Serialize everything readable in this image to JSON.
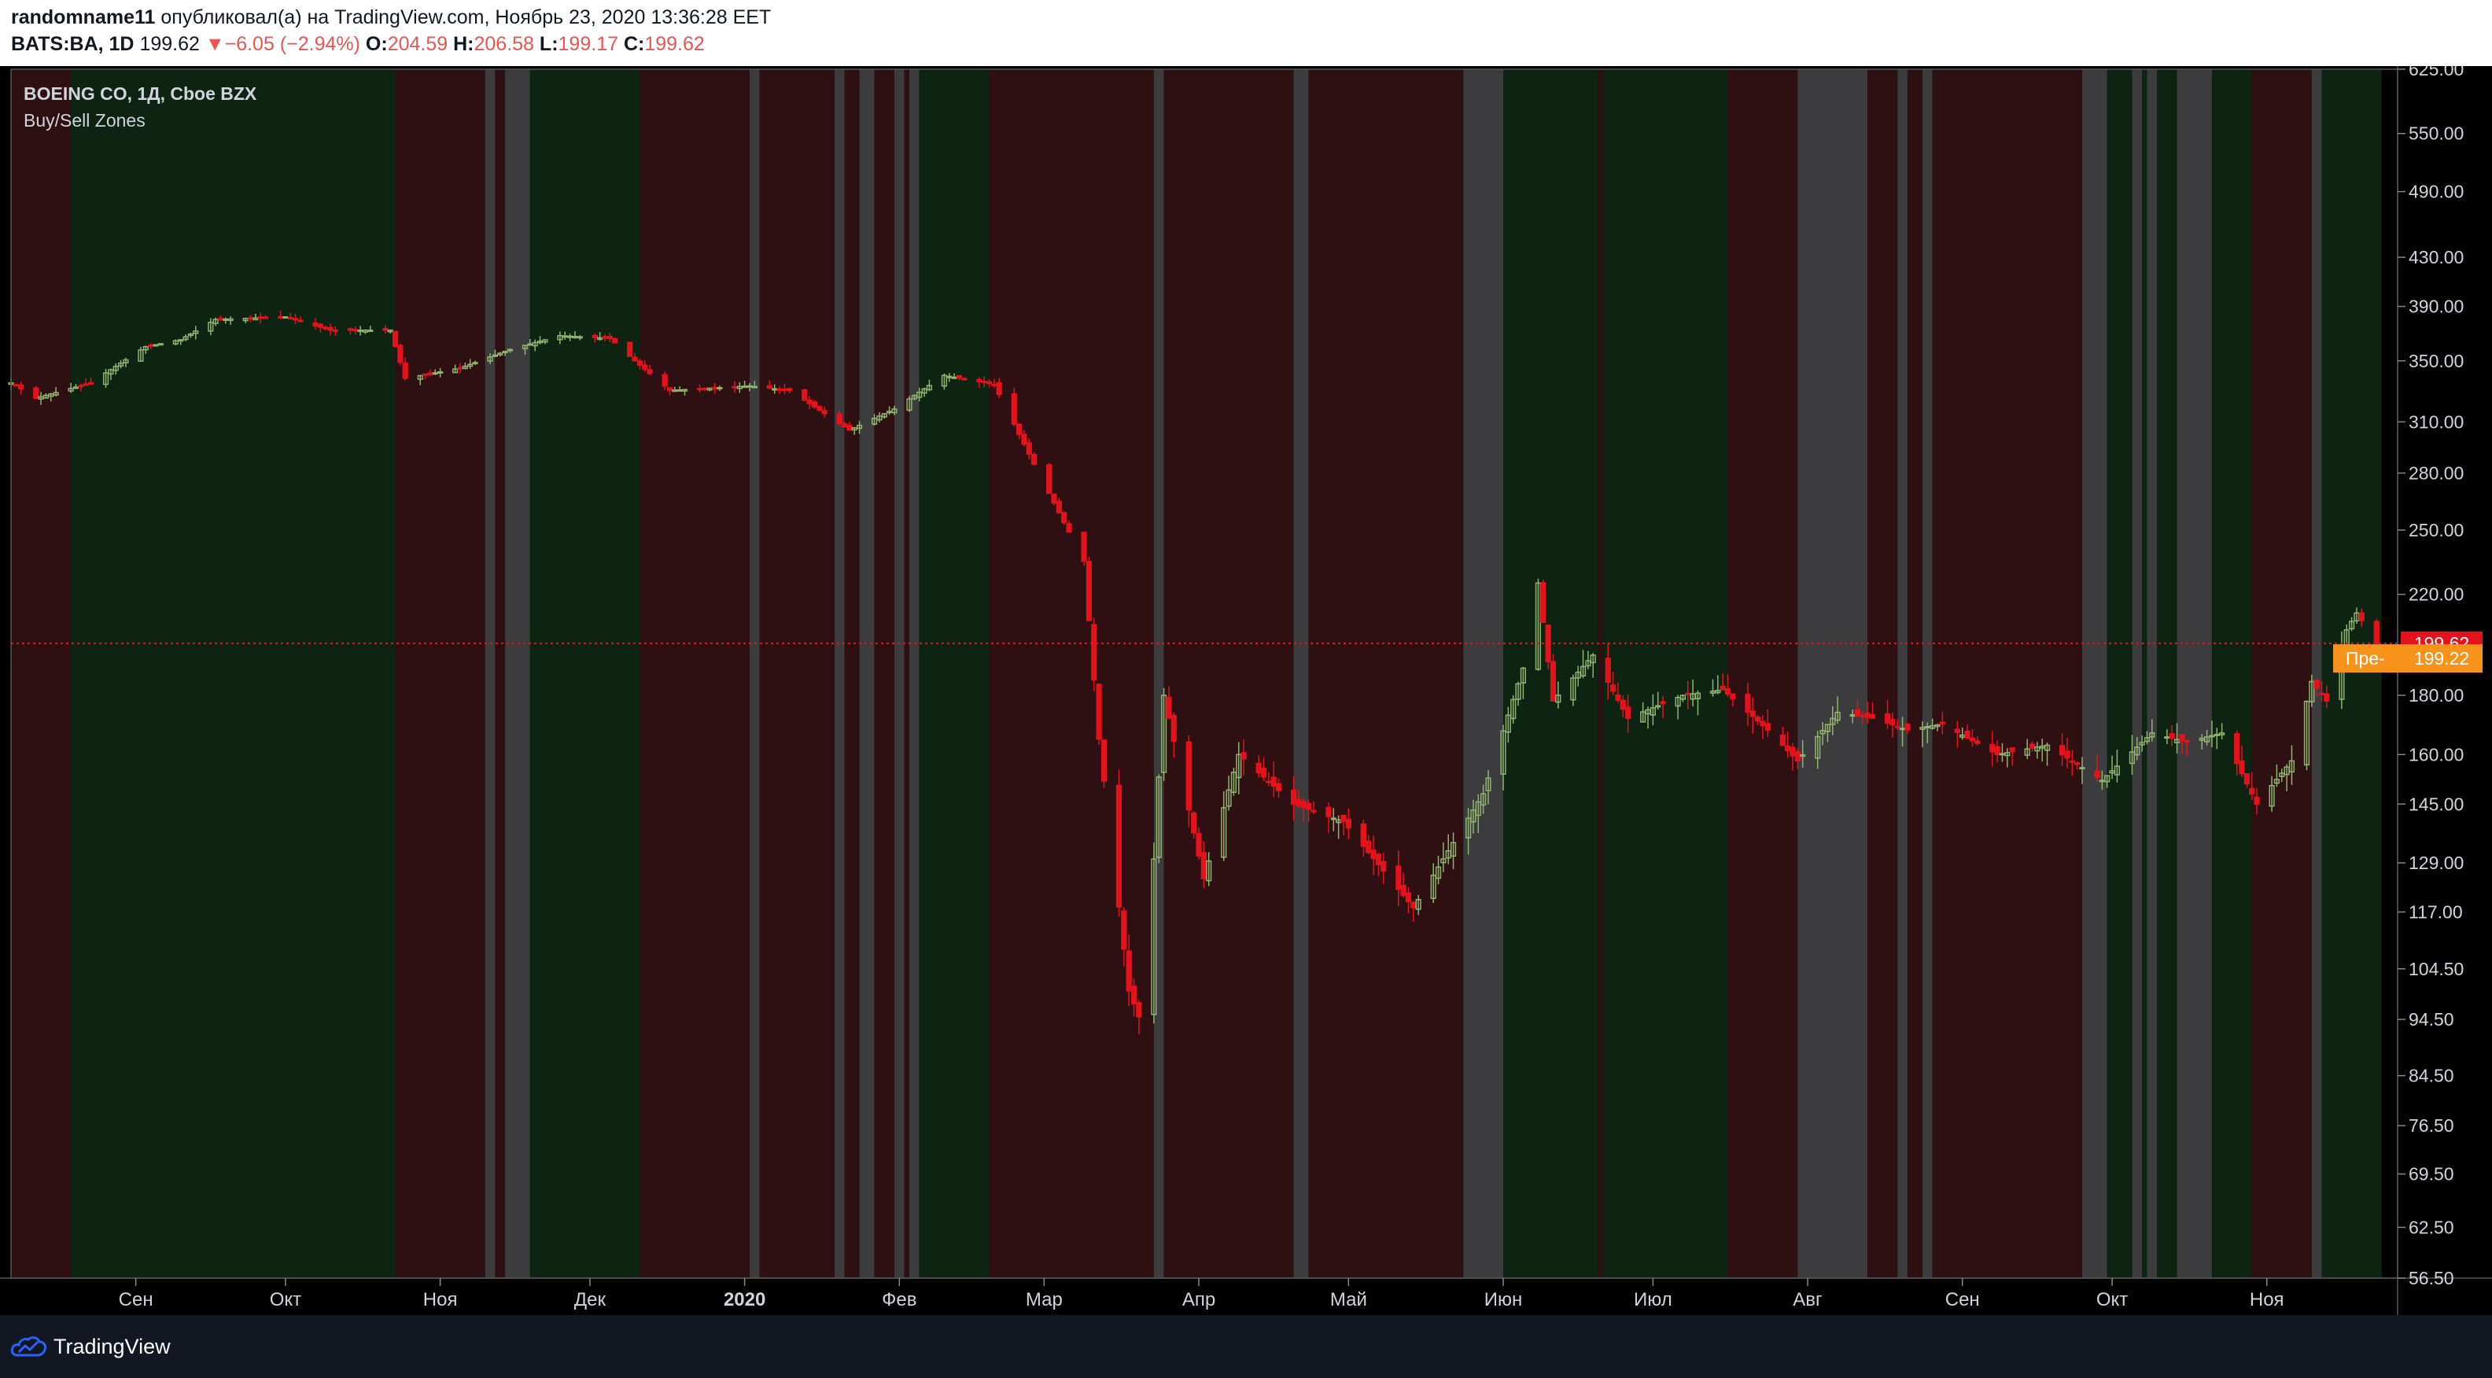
{
  "header": {
    "user": "randomname11",
    "published_text": "опубликовал(а) на TradingView.com, Ноябрь 23, 2020 13:36:28 EET",
    "symbol": "BATS:BA, 1D",
    "last_price": "199.62",
    "change_arrow": "▼",
    "change": "−6.05 (−2.94%)",
    "open_label": "O:",
    "open": "204.59",
    "high_label": "H:",
    "high": "206.58",
    "low_label": "L:",
    "low": "199.17",
    "close_label": "C:",
    "close": "199.62"
  },
  "legend": {
    "title": "BOEING CO, 1Д, Cboe BZX",
    "indicator": "Buy/Sell Zones"
  },
  "footer": {
    "brand": "TradingView"
  },
  "colors": {
    "sell_zone": "#2e1012",
    "buy_zone": "#0e2412",
    "neutral_zone": "#3c3c3e",
    "up_candle": "#8fb46e",
    "down_candle": "#e5121b",
    "price_line": "#e5121b",
    "last_tag": "#e5121b",
    "pre_tag": "#f7931a"
  },
  "chart_data": {
    "type": "candlestick",
    "scale": "log",
    "ylim": [
      56.5,
      625
    ],
    "y_ticks": [
      "625.00",
      "550.00",
      "490.00",
      "430.00",
      "390.00",
      "350.00",
      "310.00",
      "280.00",
      "250.00",
      "220.00",
      "180.00",
      "160.00",
      "145.00",
      "129.00",
      "117.00",
      "104.50",
      "94.50",
      "84.50",
      "76.50",
      "69.50",
      "62.50",
      "56.50"
    ],
    "x_labels": [
      {
        "date": "2019-09-01",
        "label": "Сен"
      },
      {
        "date": "2019-10-01",
        "label": "Окт"
      },
      {
        "date": "2019-11-01",
        "label": "Ноя"
      },
      {
        "date": "2019-12-01",
        "label": "Дек"
      },
      {
        "date": "2020-01-01",
        "label": "2020"
      },
      {
        "date": "2020-02-01",
        "label": "Фев"
      },
      {
        "date": "2020-03-01",
        "label": "Мар"
      },
      {
        "date": "2020-04-01",
        "label": "Апр"
      },
      {
        "date": "2020-05-01",
        "label": "Май"
      },
      {
        "date": "2020-06-01",
        "label": "Июн"
      },
      {
        "date": "2020-07-01",
        "label": "Июл"
      },
      {
        "date": "2020-08-01",
        "label": "Авг"
      },
      {
        "date": "2020-09-01",
        "label": "Сен"
      },
      {
        "date": "2020-10-01",
        "label": "Окт"
      },
      {
        "date": "2020-11-01",
        "label": "Ноя"
      }
    ],
    "zones": [
      {
        "from": "2019-08-07",
        "to": "2019-08-19",
        "type": "sell"
      },
      {
        "from": "2019-08-19",
        "to": "2019-10-23",
        "type": "buy"
      },
      {
        "from": "2019-10-23",
        "to": "2019-11-10",
        "type": "sell"
      },
      {
        "from": "2019-11-10",
        "to": "2019-11-12",
        "type": "neutral"
      },
      {
        "from": "2019-11-12",
        "to": "2019-11-14",
        "type": "sell"
      },
      {
        "from": "2019-11-14",
        "to": "2019-11-19",
        "type": "neutral"
      },
      {
        "from": "2019-11-19",
        "to": "2019-12-11",
        "type": "buy"
      },
      {
        "from": "2019-12-11",
        "to": "2020-01-02",
        "type": "sell"
      },
      {
        "from": "2020-01-02",
        "to": "2020-01-04",
        "type": "neutral"
      },
      {
        "from": "2020-01-04",
        "to": "2020-01-19",
        "type": "sell"
      },
      {
        "from": "2020-01-19",
        "to": "2020-01-21",
        "type": "neutral"
      },
      {
        "from": "2020-01-21",
        "to": "2020-01-24",
        "type": "sell"
      },
      {
        "from": "2020-01-24",
        "to": "2020-01-27",
        "type": "neutral"
      },
      {
        "from": "2020-01-27",
        "to": "2020-01-31",
        "type": "sell"
      },
      {
        "from": "2020-01-31",
        "to": "2020-02-02",
        "type": "neutral"
      },
      {
        "from": "2020-02-02",
        "to": "2020-02-03",
        "type": "sell"
      },
      {
        "from": "2020-02-03",
        "to": "2020-02-05",
        "type": "neutral"
      },
      {
        "from": "2020-02-05",
        "to": "2020-02-19",
        "type": "buy"
      },
      {
        "from": "2020-02-19",
        "to": "2020-03-23",
        "type": "sell"
      },
      {
        "from": "2020-03-23",
        "to": "2020-03-25",
        "type": "neutral"
      },
      {
        "from": "2020-03-25",
        "to": "2020-04-20",
        "type": "sell"
      },
      {
        "from": "2020-04-20",
        "to": "2020-04-23",
        "type": "neutral"
      },
      {
        "from": "2020-04-23",
        "to": "2020-05-24",
        "type": "sell"
      },
      {
        "from": "2020-05-24",
        "to": "2020-06-01",
        "type": "neutral"
      },
      {
        "from": "2020-06-01",
        "to": "2020-06-20",
        "type": "buy"
      },
      {
        "from": "2020-06-20",
        "to": "2020-06-21",
        "type": "sell"
      },
      {
        "from": "2020-06-21",
        "to": "2020-07-16",
        "type": "buy"
      },
      {
        "from": "2020-07-16",
        "to": "2020-07-30",
        "type": "sell"
      },
      {
        "from": "2020-07-30",
        "to": "2020-08-13",
        "type": "neutral"
      },
      {
        "from": "2020-08-13",
        "to": "2020-08-19",
        "type": "sell"
      },
      {
        "from": "2020-08-19",
        "to": "2020-08-21",
        "type": "neutral"
      },
      {
        "from": "2020-08-21",
        "to": "2020-08-24",
        "type": "sell"
      },
      {
        "from": "2020-08-24",
        "to": "2020-08-26",
        "type": "neutral"
      },
      {
        "from": "2020-08-26",
        "to": "2020-09-25",
        "type": "sell"
      },
      {
        "from": "2020-09-25",
        "to": "2020-09-30",
        "type": "neutral"
      },
      {
        "from": "2020-09-30",
        "to": "2020-10-05",
        "type": "buy"
      },
      {
        "from": "2020-10-05",
        "to": "2020-10-07",
        "type": "neutral"
      },
      {
        "from": "2020-10-07",
        "to": "2020-10-08",
        "type": "buy"
      },
      {
        "from": "2020-10-08",
        "to": "2020-10-10",
        "type": "neutral"
      },
      {
        "from": "2020-10-10",
        "to": "2020-10-14",
        "type": "buy"
      },
      {
        "from": "2020-10-14",
        "to": "2020-10-21",
        "type": "neutral"
      },
      {
        "from": "2020-10-21",
        "to": "2020-10-29",
        "type": "buy"
      },
      {
        "from": "2020-10-29",
        "to": "2020-11-10",
        "type": "sell"
      },
      {
        "from": "2020-11-10",
        "to": "2020-11-12",
        "type": "neutral"
      },
      {
        "from": "2020-11-12",
        "to": "2020-11-24",
        "type": "buy"
      }
    ],
    "key_closes": [
      {
        "date": "2019-08-07",
        "close": 335
      },
      {
        "date": "2019-08-12",
        "close": 325
      },
      {
        "date": "2019-08-23",
        "close": 335
      },
      {
        "date": "2019-09-03",
        "close": 360
      },
      {
        "date": "2019-09-10",
        "close": 365
      },
      {
        "date": "2019-09-17",
        "close": 380
      },
      {
        "date": "2019-10-01",
        "close": 382
      },
      {
        "date": "2019-10-10",
        "close": 372
      },
      {
        "date": "2019-10-22",
        "close": 372
      },
      {
        "date": "2019-10-25",
        "close": 338
      },
      {
        "date": "2019-11-05",
        "close": 345
      },
      {
        "date": "2019-11-15",
        "close": 358
      },
      {
        "date": "2019-11-25",
        "close": 368
      },
      {
        "date": "2019-12-05",
        "close": 366
      },
      {
        "date": "2019-12-10",
        "close": 350
      },
      {
        "date": "2019-12-17",
        "close": 330
      },
      {
        "date": "2020-01-02",
        "close": 333
      },
      {
        "date": "2020-01-10",
        "close": 330
      },
      {
        "date": "2020-01-22",
        "close": 305
      },
      {
        "date": "2020-01-31",
        "close": 318
      },
      {
        "date": "2020-02-10",
        "close": 340
      },
      {
        "date": "2020-02-20",
        "close": 334
      },
      {
        "date": "2020-02-28",
        "close": 285
      },
      {
        "date": "2020-03-09",
        "close": 235
      },
      {
        "date": "2020-03-12",
        "close": 165
      },
      {
        "date": "2020-03-18",
        "close": 100
      },
      {
        "date": "2020-03-20",
        "close": 95
      },
      {
        "date": "2020-03-23",
        "close": 130
      },
      {
        "date": "2020-03-25",
        "close": 180
      },
      {
        "date": "2020-04-02",
        "close": 125
      },
      {
        "date": "2020-04-09",
        "close": 160
      },
      {
        "date": "2020-04-20",
        "close": 145
      },
      {
        "date": "2020-04-30",
        "close": 140
      },
      {
        "date": "2020-05-14",
        "close": 118
      },
      {
        "date": "2020-05-20",
        "close": 130
      },
      {
        "date": "2020-05-28",
        "close": 148
      },
      {
        "date": "2020-06-05",
        "close": 190
      },
      {
        "date": "2020-06-08",
        "close": 225
      },
      {
        "date": "2020-06-11",
        "close": 178
      },
      {
        "date": "2020-06-19",
        "close": 195
      },
      {
        "date": "2020-06-26",
        "close": 172
      },
      {
        "date": "2020-07-07",
        "close": 180
      },
      {
        "date": "2020-07-15",
        "close": 182
      },
      {
        "date": "2020-07-24",
        "close": 168
      },
      {
        "date": "2020-07-30",
        "close": 158
      },
      {
        "date": "2020-08-07",
        "close": 174
      },
      {
        "date": "2020-08-14",
        "close": 172
      },
      {
        "date": "2020-08-21",
        "close": 168
      },
      {
        "date": "2020-08-28",
        "close": 170
      },
      {
        "date": "2020-09-08",
        "close": 160
      },
      {
        "date": "2020-09-18",
        "close": 163
      },
      {
        "date": "2020-09-29",
        "close": 152
      },
      {
        "date": "2020-10-09",
        "close": 167
      },
      {
        "date": "2020-10-16",
        "close": 164
      },
      {
        "date": "2020-10-23",
        "close": 167
      },
      {
        "date": "2020-10-30",
        "close": 145
      },
      {
        "date": "2020-11-06",
        "close": 158
      },
      {
        "date": "2020-11-10",
        "close": 185
      },
      {
        "date": "2020-11-13",
        "close": 178
      },
      {
        "date": "2020-11-17",
        "close": 205
      },
      {
        "date": "2020-11-19",
        "close": 212
      },
      {
        "date": "2020-11-23",
        "close": 199.62
      }
    ],
    "last_price_tag": "199.62",
    "pre_market": {
      "label": "Пре-",
      "price": "199.22"
    }
  }
}
